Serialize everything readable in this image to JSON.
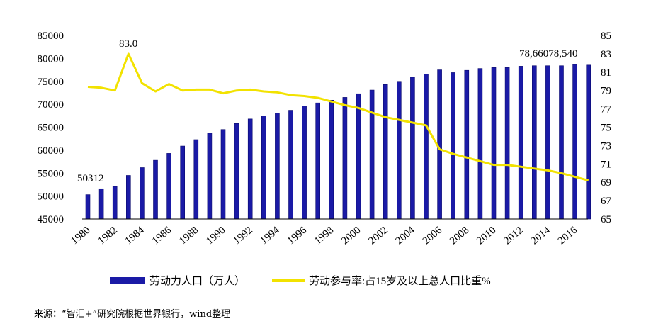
{
  "colors": {
    "bar": "#1a1aa6",
    "bar_edge": "#0b0b6e",
    "line": "#f2e200"
  },
  "legend": {
    "bar_label": "劳动力人口（万人）",
    "line_label": "劳动参与率:占15岁及以上总人口比重%"
  },
  "source": "来源：“智汇+”研究院根据世界银行，wind整理",
  "annotations": {
    "first_bar": "50312",
    "peak_line": "83.0",
    "last_bars": "78,66078,540"
  },
  "chart_data": {
    "type": "bar+line",
    "years": [
      1980,
      1981,
      1982,
      1983,
      1984,
      1985,
      1986,
      1987,
      1988,
      1989,
      1990,
      1991,
      1992,
      1993,
      1994,
      1995,
      1996,
      1997,
      1998,
      1999,
      2000,
      2001,
      2002,
      2003,
      2004,
      2005,
      2006,
      2007,
      2008,
      2009,
      2010,
      2011,
      2012,
      2013,
      2014,
      2015,
      2016,
      2017
    ],
    "x_tick_labels": [
      "1980",
      "1982",
      "1984",
      "1986",
      "1988",
      "1990",
      "1992",
      "1994",
      "1996",
      "1998",
      "2000",
      "2002",
      "2004",
      "2006",
      "2008",
      "2010",
      "2012",
      "2014",
      "2016"
    ],
    "series": [
      {
        "name": "劳动力人口（万人）",
        "type": "bar",
        "axis": "left",
        "values": [
          50312,
          51600,
          52100,
          54500,
          56200,
          57800,
          59300,
          60900,
          62300,
          63700,
          64500,
          65800,
          66800,
          67500,
          68100,
          68700,
          69600,
          70300,
          70900,
          71500,
          72300,
          73100,
          74300,
          75000,
          75900,
          76600,
          77500,
          76900,
          77400,
          77800,
          78000,
          78000,
          78300,
          78400,
          78400,
          78400,
          78660,
          78540
        ]
      },
      {
        "name": "劳动参与率:占15岁及以上总人口比重%",
        "type": "line",
        "axis": "right",
        "values": [
          79.4,
          79.3,
          79.0,
          83.0,
          79.8,
          78.9,
          79.7,
          79.0,
          79.1,
          79.1,
          78.7,
          79.0,
          79.1,
          78.9,
          78.8,
          78.5,
          78.4,
          78.2,
          77.8,
          77.4,
          77.1,
          76.6,
          76.1,
          75.8,
          75.5,
          75.2,
          72.6,
          72.1,
          71.7,
          71.3,
          70.9,
          70.9,
          70.7,
          70.5,
          70.3,
          70.0,
          69.6,
          69.2
        ]
      }
    ],
    "y_left": {
      "range": [
        45000,
        85000
      ],
      "ticks": [
        "85000",
        "80000",
        "75000",
        "70000",
        "65000",
        "60000",
        "55000",
        "50000",
        "45000"
      ]
    },
    "y_right": {
      "range": [
        65,
        85
      ],
      "ticks": [
        "85",
        "83",
        "81",
        "79",
        "77",
        "75",
        "73",
        "71",
        "69",
        "67",
        "65"
      ]
    },
    "grid": false,
    "legend_position": "bottom"
  }
}
